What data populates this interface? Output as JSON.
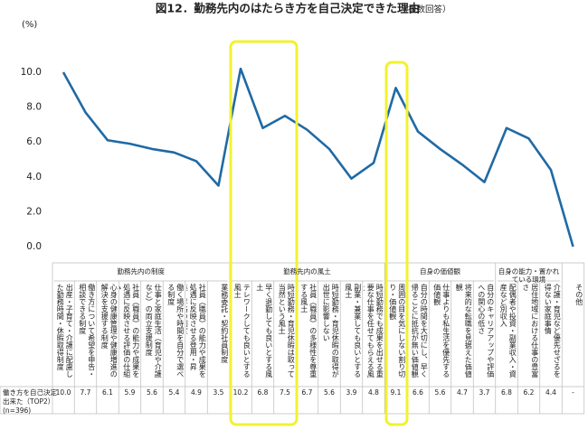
{
  "chart_data": {
    "type": "line",
    "title": "図12．勤務先内のはたらき方を自己決定できた理由",
    "note": "（複数回答）",
    "y_unit": "(%)",
    "color": "#1f6aa5",
    "ylim": [
      0,
      10
    ],
    "yticks": [
      {
        "value": 0,
        "label": "0.0"
      },
      {
        "value": 2,
        "label": "2.0"
      },
      {
        "value": 4,
        "label": "4.0"
      },
      {
        "value": 6,
        "label": "6.0"
      },
      {
        "value": 8,
        "label": "8.0"
      },
      {
        "value": 10,
        "label": "10.0"
      }
    ],
    "row_label": [
      "働き方を自己決定",
      "出来た（TOP2）",
      "(n=396)"
    ],
    "groups": [
      {
        "label": "勤務先内の制度",
        "categories": [
          "出産・子育て・介護に配慮した勤務時間・休暇取得制度",
          "働き方について希望を申告・相談できる制度",
          "心身の健康管理や健康増進の解決を支援する制度",
          "社員（職員）の能力や成果を処遇に反映させる評価の仕組み",
          "仕事と家庭生活（育児や介護など）の両立支援制度",
          "働く場所や時間を自分で選べる制度",
          "社員（職員）の能力や成果を処遇に反映させる登用・昇進・昇格の制度",
          "業務委託・契約社員制度"
        ],
        "values": [
          10.0,
          7.7,
          6.1,
          5.9,
          5.6,
          5.4,
          4.9,
          3.5
        ],
        "value_labels": [
          "10.0",
          "7.7",
          "6.1",
          "5.9",
          "5.6",
          "5.4",
          "4.9",
          "3.5"
        ]
      },
      {
        "label": "勤務先内の風土",
        "categories": [
          "テレワークしても良いとする風土",
          "早く退勤しても良いとする風土",
          "時短勤務・育児休暇は取って当然という風土",
          "社員（職員）の多様性を尊重する風土",
          "時短勤務・育児休暇の取得が出世に影響しない",
          "副業・兼業しても良いとする風土",
          "時短勤務でも成果を出せる重要な仕事を任せてもらえる風土"
        ],
        "values": [
          10.2,
          6.8,
          7.5,
          6.7,
          5.6,
          3.9,
          4.8
        ],
        "value_labels": [
          "10.2",
          "6.8",
          "7.5",
          "6.7",
          "5.6",
          "3.9",
          "4.8"
        ]
      },
      {
        "label": "自身の価値観",
        "categories": [
          "周囲の目を気にしない割り切り・価値観",
          "自分の時間を大切にし、早く帰ることに抵抗が無い価値観",
          "仕事よりも私生活を優先する価値観",
          "将来的な転職を見据えた価値観",
          "自分のキャリアアップや評価への関心の低さ"
        ],
        "values": [
          9.1,
          6.6,
          5.6,
          4.7,
          3.7
        ],
        "value_labels": [
          "9.1",
          "6.6",
          "5.6",
          "4.7",
          "3.7"
        ]
      },
      {
        "label": "自身の能力・置かれている環境",
        "categories": [
          "配偶者や投資・副業収入・資産など別収入",
          "居住地域における仕事の豊富さ",
          "介護・育児など優先せざるを得ない家庭事情"
        ],
        "values": [
          6.8,
          6.2,
          4.4
        ],
        "value_labels": [
          "6.8",
          "6.2",
          "4.4"
        ]
      },
      {
        "label": null,
        "categories": [
          "その他"
        ],
        "values": [
          0
        ],
        "value_labels": [
          "-"
        ]
      }
    ]
  }
}
